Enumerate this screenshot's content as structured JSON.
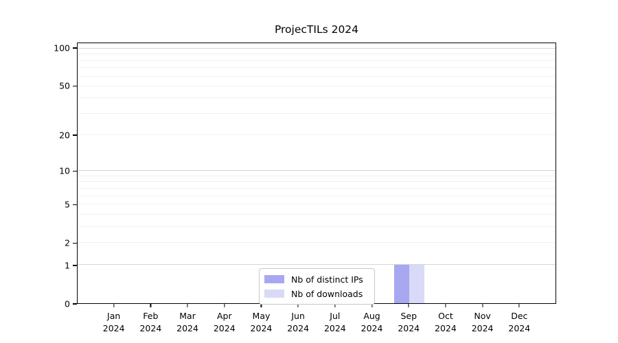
{
  "chart_data": {
    "type": "bar",
    "title": "ProjecTILs 2024",
    "categories": [
      "Jan",
      "Feb",
      "Mar",
      "Apr",
      "May",
      "Jun",
      "Jul",
      "Aug",
      "Sep",
      "Oct",
      "Nov",
      "Dec"
    ],
    "category_year": "2024",
    "series": [
      {
        "name": "Nb of distinct IPs",
        "color": "#a8a8f0",
        "values": [
          0,
          0,
          0,
          0,
          0,
          0,
          0,
          0,
          1,
          0,
          0,
          0
        ]
      },
      {
        "name": "Nb of downloads",
        "color": "#d9d9f8",
        "values": [
          0,
          0,
          0,
          0,
          0,
          0,
          0,
          0,
          1,
          0,
          0,
          0
        ]
      }
    ],
    "yscale": "log1p",
    "ylabel": "",
    "xlabel": "",
    "y_ticks": [
      0,
      1,
      2,
      5,
      10,
      20,
      50,
      100
    ],
    "y_major_gridlines": [
      1,
      10,
      100
    ],
    "y_minor_gridlines": [
      2,
      3,
      4,
      5,
      6,
      7,
      8,
      9,
      20,
      30,
      40,
      50,
      60,
      70,
      80,
      90
    ],
    "ylim": [
      0,
      110.5
    ],
    "xlim": [
      -1,
      12
    ],
    "bar_width_months": 0.41,
    "grid": true,
    "legend_position": "bottom-center"
  },
  "colors": {
    "bar_distinct_ips": "#a8a8f0",
    "bar_downloads": "#d9d9f8",
    "major_gridline": "#d5d5d5",
    "minor_gridline": "#f0f0f0",
    "axis": "#000000",
    "legend_border": "#c8c8c8"
  }
}
